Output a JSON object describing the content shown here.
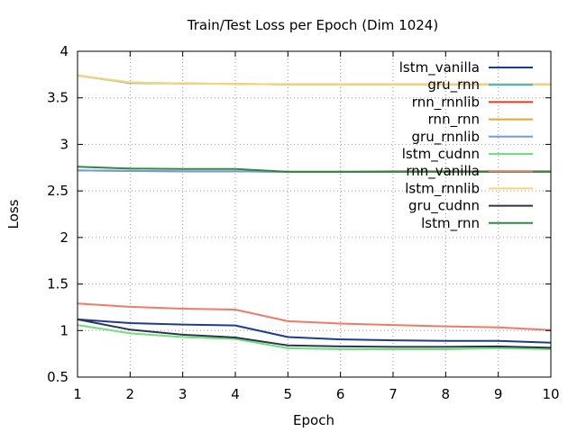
{
  "chart_data": {
    "type": "line",
    "title": "Train/Test Loss per Epoch (Dim 1024)",
    "xlabel": "Epoch",
    "ylabel": "Loss",
    "xlim": [
      1,
      10
    ],
    "ylim": [
      0.5,
      4
    ],
    "x": [
      1,
      2,
      3,
      4,
      5,
      6,
      7,
      8,
      9,
      10
    ],
    "xticks": [
      "1",
      "2",
      "3",
      "4",
      "5",
      "6",
      "7",
      "8",
      "9",
      "10"
    ],
    "yticks": [
      0.5,
      1,
      1.5,
      2,
      2.5,
      3,
      3.5,
      4
    ],
    "yticklabels": [
      "0.5",
      "1",
      "1.5",
      "2",
      "2.5",
      "3",
      "3.5",
      "4"
    ],
    "grid": true,
    "legend_position": "top-right",
    "series": [
      {
        "name": "lstm_vanilla",
        "color": "#1f3a93",
        "values": [
          1.12,
          1.08,
          1.065,
          1.055,
          0.93,
          0.905,
          0.895,
          0.89,
          0.89,
          0.87
        ]
      },
      {
        "name": "gru_rnn",
        "color": "#3ab0c8",
        "values": [
          3.74,
          3.66,
          3.655,
          3.65,
          3.645,
          3.645,
          3.645,
          3.645,
          3.645,
          3.645
        ]
      },
      {
        "name": "rnn_rnnlib",
        "color": "#e03c1e",
        "values": [
          2.72,
          2.715,
          2.71,
          2.71,
          2.705,
          2.705,
          2.71,
          2.71,
          2.71,
          2.71
        ]
      },
      {
        "name": "rnn_rnn",
        "color": "#f5a020",
        "values": [
          3.74,
          3.665,
          3.655,
          3.65,
          3.645,
          3.645,
          3.645,
          3.645,
          3.645,
          3.645
        ]
      },
      {
        "name": "gru_rnnlib",
        "color": "#6f9be8",
        "values": [
          2.72,
          2.715,
          2.71,
          2.71,
          2.705,
          2.705,
          2.705,
          2.705,
          2.705,
          2.705
        ]
      },
      {
        "name": "lstm_cudnn",
        "color": "#6ee07a",
        "values": [
          1.06,
          0.97,
          0.93,
          0.91,
          0.81,
          0.8,
          0.8,
          0.8,
          0.81,
          0.8
        ]
      },
      {
        "name": "rnn_vanilla",
        "color": "#f07a6a",
        "values": [
          1.29,
          1.255,
          1.235,
          1.225,
          1.1,
          1.075,
          1.06,
          1.045,
          1.035,
          1.005
        ]
      },
      {
        "name": "lstm_rnnlib",
        "color": "#f6d57a",
        "values": [
          3.74,
          3.665,
          3.655,
          3.65,
          3.645,
          3.645,
          3.645,
          3.645,
          3.645,
          3.645
        ]
      },
      {
        "name": "gru_cudnn",
        "color": "#2a3550",
        "values": [
          1.12,
          1.01,
          0.955,
          0.925,
          0.84,
          0.83,
          0.825,
          0.825,
          0.83,
          0.815
        ]
      },
      {
        "name": "lstm_rnn",
        "color": "#2f8a3c",
        "values": [
          2.76,
          2.74,
          2.735,
          2.735,
          2.705,
          2.705,
          2.705,
          2.705,
          2.705,
          2.705
        ]
      }
    ]
  }
}
